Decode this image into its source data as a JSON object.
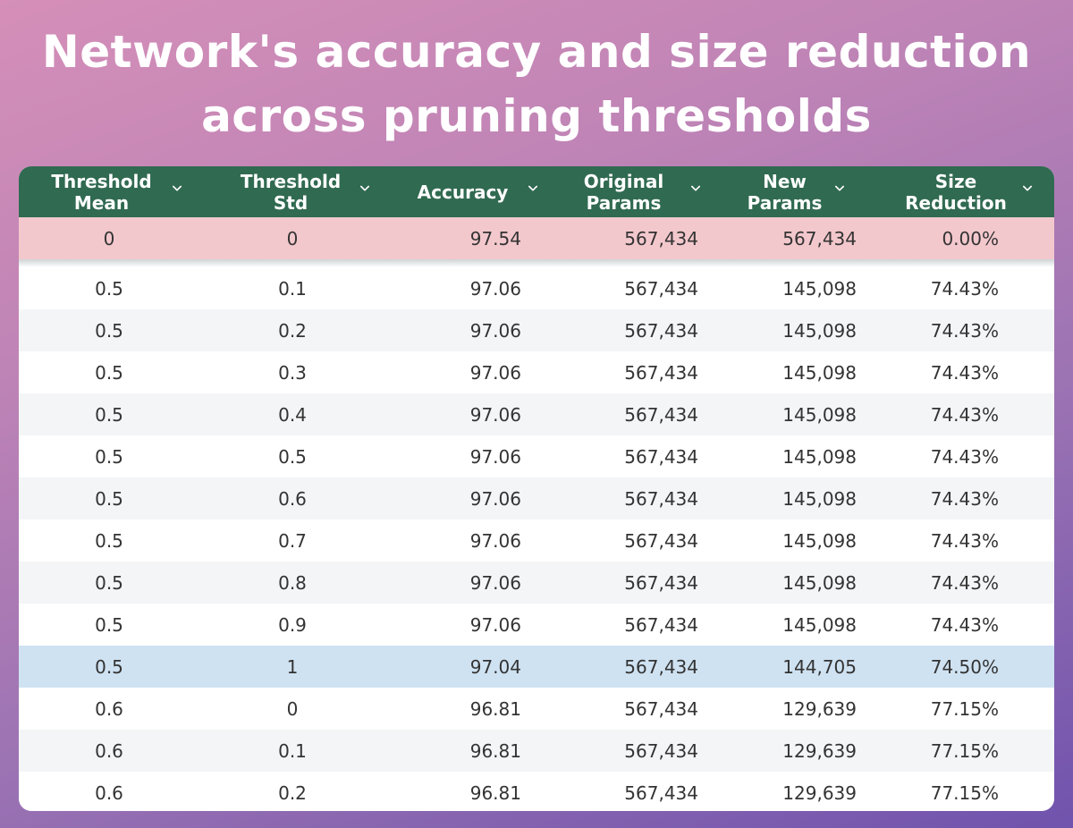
{
  "title": {
    "line1": "Network's accuracy and size reduction",
    "line2": "across pruning thresholds"
  },
  "table": {
    "columns": [
      {
        "label": "Threshold\nMean",
        "icon": "chevron-down-icon"
      },
      {
        "label": "Threshold\nStd",
        "icon": "chevron-down-icon"
      },
      {
        "label": "Accuracy",
        "icon": "chevron-down-icon"
      },
      {
        "label": "Original\nParams",
        "icon": "chevron-down-icon"
      },
      {
        "label": "New\nParams",
        "icon": "chevron-down-icon"
      },
      {
        "label": "Size\nReduction",
        "icon": "chevron-down-icon"
      }
    ],
    "pinned_row": [
      "0",
      "0",
      "97.54",
      "567,434",
      "567,434",
      "0.00%"
    ],
    "rows": [
      [
        "0.5",
        "0.1",
        "97.06",
        "567,434",
        "145,098",
        "74.43%"
      ],
      [
        "0.5",
        "0.2",
        "97.06",
        "567,434",
        "145,098",
        "74.43%"
      ],
      [
        "0.5",
        "0.3",
        "97.06",
        "567,434",
        "145,098",
        "74.43%"
      ],
      [
        "0.5",
        "0.4",
        "97.06",
        "567,434",
        "145,098",
        "74.43%"
      ],
      [
        "0.5",
        "0.5",
        "97.06",
        "567,434",
        "145,098",
        "74.43%"
      ],
      [
        "0.5",
        "0.6",
        "97.06",
        "567,434",
        "145,098",
        "74.43%"
      ],
      [
        "0.5",
        "0.7",
        "97.06",
        "567,434",
        "145,098",
        "74.43%"
      ],
      [
        "0.5",
        "0.8",
        "97.06",
        "567,434",
        "145,098",
        "74.43%"
      ],
      [
        "0.5",
        "0.9",
        "97.06",
        "567,434",
        "145,098",
        "74.43%"
      ],
      [
        "0.5",
        "1",
        "97.04",
        "567,434",
        "144,705",
        "74.50%"
      ],
      [
        "0.6",
        "0",
        "96.81",
        "567,434",
        "129,639",
        "77.15%"
      ],
      [
        "0.6",
        "0.1",
        "96.81",
        "567,434",
        "129,639",
        "77.15%"
      ],
      [
        "0.6",
        "0.2",
        "96.81",
        "567,434",
        "129,639",
        "77.15%"
      ]
    ],
    "highlighted_row_index": 9
  },
  "colors": {
    "header_bg": "#306a51",
    "pinned_row_bg": "#f3c8cd",
    "highlight_row_bg": "#cfe2f2"
  }
}
